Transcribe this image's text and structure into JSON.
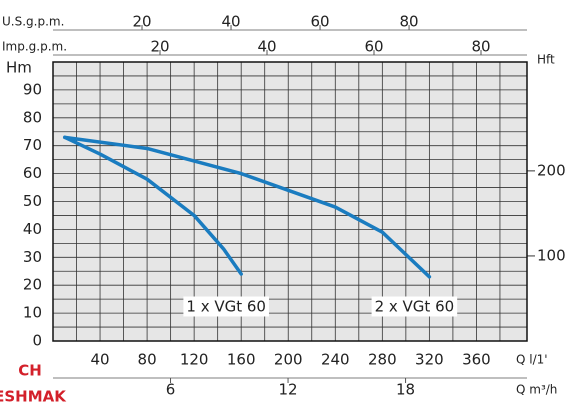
{
  "chart_data": {
    "type": "line",
    "y_label": "Hm",
    "ylim": [
      0,
      100
    ],
    "yticks": [
      0,
      10,
      20,
      30,
      40,
      50,
      60,
      70,
      80,
      90
    ],
    "y_minor_ticks": [
      5,
      15,
      25,
      35,
      45,
      55,
      65,
      75,
      85,
      95
    ],
    "y2_label": "Hft",
    "y2lim": [
      0,
      328
    ],
    "y2ticks": [
      100,
      200
    ],
    "x_label": "Q l/1'",
    "xlim": [
      0,
      403
    ],
    "xticks": [
      40,
      80,
      120,
      160,
      200,
      240,
      280,
      320,
      360
    ],
    "x_minor_ticks": [
      20,
      60,
      100,
      140,
      180,
      220,
      260,
      300,
      340,
      380
    ],
    "x_axes": [
      {
        "label": "Q m³/h",
        "xlim": [
          0,
          24.2
        ],
        "ticks": [
          6,
          12,
          18
        ]
      },
      {
        "label": "U.S.g.p.m.",
        "xlim": [
          0,
          106.5
        ],
        "ticks": [
          20,
          40,
          60,
          80
        ]
      },
      {
        "label": "Imp.g.p.m.",
        "xlim": [
          0,
          88.6
        ],
        "ticks": [
          20,
          40,
          60,
          80
        ]
      }
    ],
    "grid": true,
    "series": [
      {
        "name": "1 x VGt 60",
        "color": "#1a7cc0",
        "x": [
          10,
          40,
          80,
          120,
          145,
          160
        ],
        "values": [
          73,
          67,
          58,
          45,
          33,
          24
        ]
      },
      {
        "name": "2 x VGt 60",
        "color": "#1a7cc0",
        "x": [
          10,
          80,
          160,
          240,
          280,
          320
        ],
        "values": [
          73,
          69,
          60,
          48,
          39,
          23
        ]
      }
    ],
    "logo": "CH",
    "logo_sub": "ESHMAK"
  }
}
